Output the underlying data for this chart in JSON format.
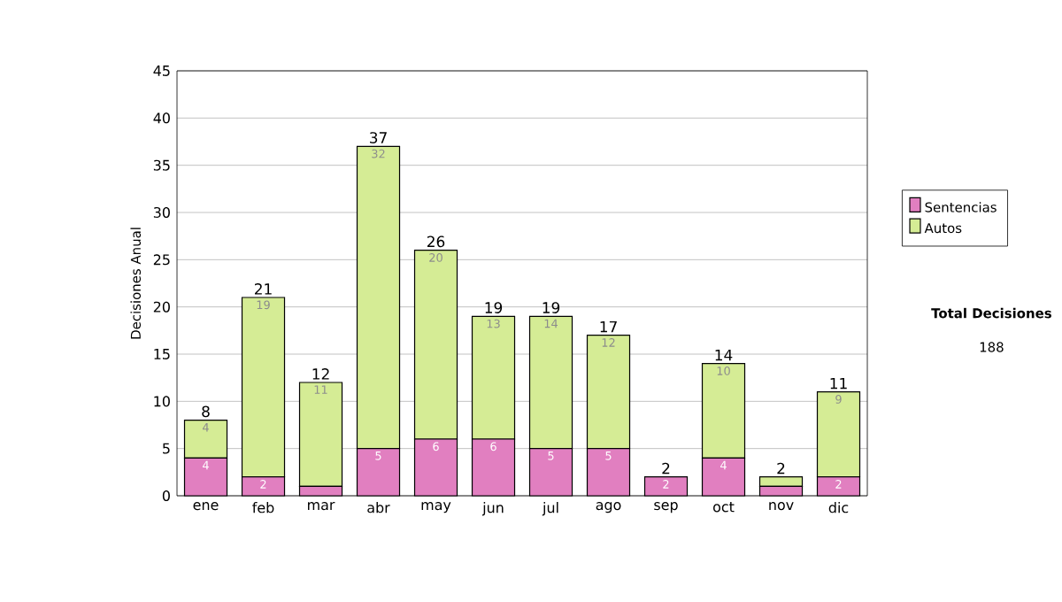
{
  "chart_data": {
    "type": "bar",
    "stacked": true,
    "ylabel": "Decisiones Anual",
    "categories": [
      "ene",
      "feb",
      "mar",
      "abr",
      "may",
      "jun",
      "jul",
      "ago",
      "sep",
      "oct",
      "nov",
      "dic"
    ],
    "series": [
      {
        "name": "Sentencias",
        "color": "#e17fc0",
        "values": [
          4,
          2,
          1,
          5,
          6,
          6,
          5,
          5,
          2,
          4,
          1,
          2
        ],
        "value_labels": [
          "4",
          "2",
          null,
          "5",
          "6",
          "6",
          "5",
          "5",
          "2",
          "4",
          null,
          "2"
        ]
      },
      {
        "name": "Autos",
        "color": "#d5ec95",
        "values": [
          4,
          19,
          11,
          32,
          20,
          13,
          14,
          12,
          0,
          10,
          1,
          9
        ],
        "value_labels": [
          "4",
          "19",
          "11",
          "32",
          "20",
          "13",
          "14",
          "12",
          null,
          "10",
          null,
          "9"
        ]
      }
    ],
    "totals": [
      "8",
      "21",
      "12",
      "37",
      "26",
      "19",
      "19",
      "17",
      "2",
      "14",
      "2",
      "11"
    ],
    "ylim": [
      0,
      45
    ],
    "yticks": [
      0,
      5,
      10,
      15,
      20,
      25,
      30,
      35,
      40,
      45
    ],
    "grid": "y",
    "legend": "right",
    "annotations": [
      "Total Decisiones",
      "188"
    ]
  }
}
